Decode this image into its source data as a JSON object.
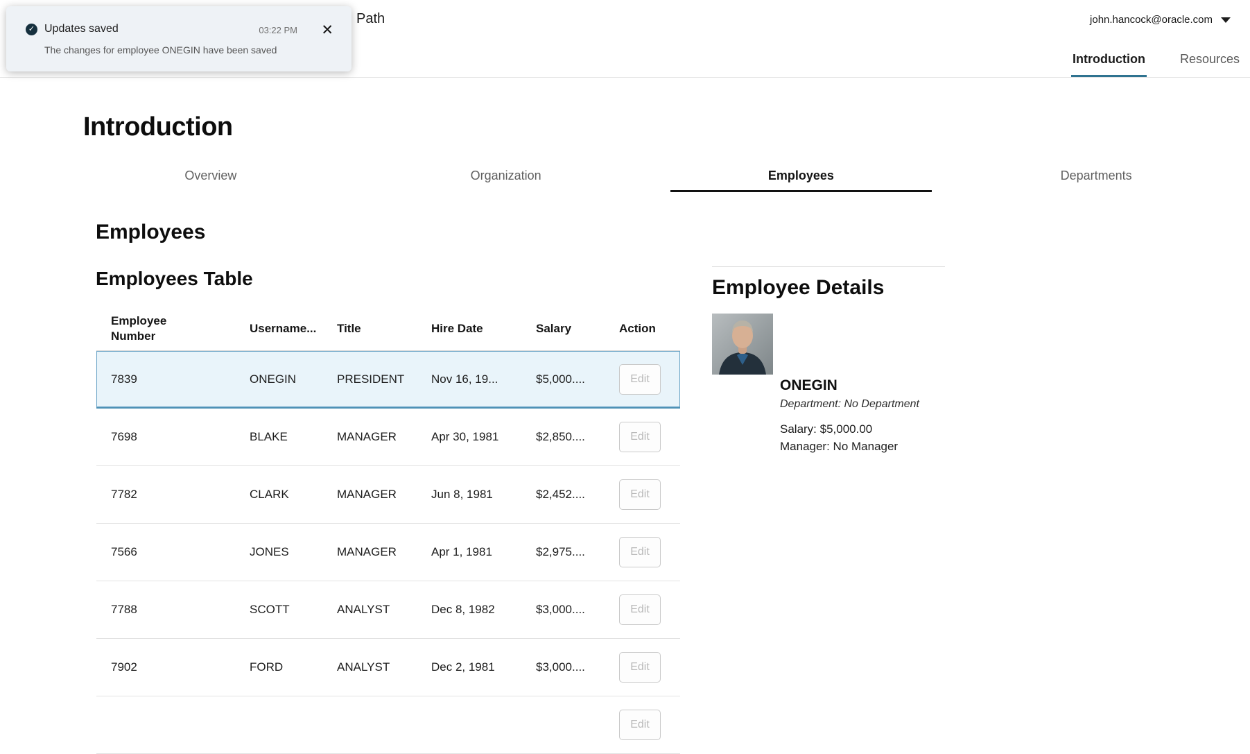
{
  "toast": {
    "title": "Updates saved",
    "time": "03:22 PM",
    "message": "The changes for employee ONEGIN have been saved",
    "status_icon": "check-circle-icon",
    "close_icon": "close-icon",
    "check_glyph": "✓",
    "close_glyph": "✕"
  },
  "header": {
    "app_title_partial": "Path",
    "user_email": "john.hancock@oracle.com",
    "tabs": [
      {
        "label": "Introduction",
        "active": true
      },
      {
        "label": "Resources",
        "active": false
      }
    ]
  },
  "page": {
    "title": "Introduction",
    "subtabs": [
      {
        "label": "Overview",
        "active": false
      },
      {
        "label": "Organization",
        "active": false
      },
      {
        "label": "Employees",
        "active": true
      },
      {
        "label": "Departments",
        "active": false
      }
    ],
    "section_title": "Employees",
    "table_title": "Employees Table"
  },
  "table": {
    "columns": [
      "Employee Number",
      "Username...",
      "Title",
      "Hire Date",
      "Salary",
      "Action"
    ],
    "edit_label": "Edit",
    "partial_row_visible": true,
    "rows": [
      {
        "employee_number": "7839",
        "username": "ONEGIN",
        "title": "PRESIDENT",
        "hire_date": "Nov 16, 19...",
        "salary": "$5,000....",
        "selected": true
      },
      {
        "employee_number": "7698",
        "username": "BLAKE",
        "title": "MANAGER",
        "hire_date": "Apr 30, 1981",
        "salary": "$2,850....",
        "selected": false
      },
      {
        "employee_number": "7782",
        "username": "CLARK",
        "title": "MANAGER",
        "hire_date": "Jun 8, 1981",
        "salary": "$2,452....",
        "selected": false
      },
      {
        "employee_number": "7566",
        "username": "JONES",
        "title": "MANAGER",
        "hire_date": "Apr 1, 1981",
        "salary": "$2,975....",
        "selected": false
      },
      {
        "employee_number": "7788",
        "username": "SCOTT",
        "title": "ANALYST",
        "hire_date": "Dec 8, 1982",
        "salary": "$3,000....",
        "selected": false
      },
      {
        "employee_number": "7902",
        "username": "FORD",
        "title": "ANALYST",
        "hire_date": "Dec 2, 1981",
        "salary": "$3,000....",
        "selected": false
      }
    ]
  },
  "details": {
    "title": "Employee Details",
    "name": "ONEGIN",
    "department": "Department: No Department",
    "salary": "Salary: $5,000.00",
    "manager": "Manager: No Manager",
    "photo": "employee-photo"
  },
  "colors": {
    "accent": "#2f7390",
    "subtab_underline": "#121212",
    "selected_row_bg": "#e9f4fa",
    "selected_row_border": "#69a3c6",
    "toast_bg": "#eef2f6",
    "toast_icon_bg": "#15303e"
  }
}
